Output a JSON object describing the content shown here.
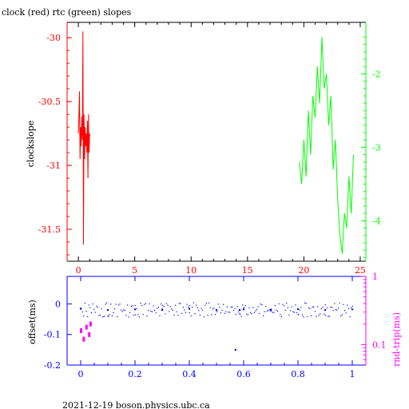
{
  "chart_data": [
    {
      "type": "line",
      "title": "clock (red) rtc (green) slopes",
      "xlabel": "",
      "ylabel": "clockslope",
      "xlim": [
        -1,
        25.5
      ],
      "ylim": [
        -31.75,
        -29.88
      ],
      "y2lim": [
        -4.55,
        -1.3
      ],
      "x_ticks": [
        "0",
        "5",
        "10",
        "15",
        "20",
        "25"
      ],
      "y_ticks": [
        "-30",
        "-30.5",
        "-31",
        "-31.5"
      ],
      "y2_ticks": [
        "-2",
        "-3",
        "-4"
      ],
      "colors": {
        "clock": "#ff0000",
        "rtc": "#00ff00",
        "axes": "#000000"
      },
      "series": [
        {
          "name": "clock",
          "axis": "left",
          "color": "#ff0000",
          "x": [
            0.0,
            0.05,
            0.1,
            0.15,
            0.2,
            0.25,
            0.3,
            0.35,
            0.4,
            0.45,
            0.5,
            0.55,
            0.6,
            0.65,
            0.7,
            0.75,
            0.8,
            0.85,
            0.9,
            0.95,
            1.0
          ],
          "values": [
            -30.75,
            -30.6,
            -30.42,
            -30.95,
            -30.7,
            -30.85,
            -30.62,
            -30.8,
            -29.95,
            -31.62,
            -30.6,
            -30.95,
            -30.7,
            -30.85,
            -30.75,
            -30.9,
            -30.65,
            -31.1,
            -30.6,
            -30.9,
            -30.75
          ]
        },
        {
          "name": "rtc",
          "axis": "right",
          "color": "#00ff00",
          "x": [
            19.6,
            19.8,
            20.0,
            20.2,
            20.4,
            20.6,
            20.8,
            21.0,
            21.2,
            21.4,
            21.6,
            21.8,
            22.0,
            22.2,
            22.4,
            22.6,
            22.8,
            23.0,
            23.2,
            23.4,
            23.6,
            23.8,
            24.0,
            24.2,
            24.4
          ],
          "values": [
            -3.2,
            -3.5,
            -2.9,
            -3.4,
            -2.5,
            -3.1,
            -2.3,
            -2.6,
            -1.9,
            -2.4,
            -1.5,
            -2.2,
            -2.0,
            -2.7,
            -2.3,
            -3.3,
            -2.9,
            -3.7,
            -4.2,
            -4.45,
            -3.9,
            -4.1,
            -3.4,
            -3.9,
            -3.1
          ]
        }
      ]
    },
    {
      "type": "scatter",
      "title": "",
      "xlabel": "",
      "ylabel": "offset(ms)",
      "y2label": "rnd-trip(ms)",
      "xlim": [
        -0.05,
        1.05
      ],
      "ylim": [
        -0.2,
        0.09
      ],
      "y2_scale": "log",
      "y2lim": [
        0.05,
        1.0
      ],
      "x_ticks": [
        "0",
        "0.2",
        "0.4",
        "0.6",
        "0.8",
        "1"
      ],
      "y_ticks": [
        "0",
        "-0.1",
        "-0.2"
      ],
      "y2_ticks": [
        "1",
        "0.1"
      ],
      "colors": {
        "offset": "#0000ff",
        "rnd_trip": "#ff00ff"
      },
      "series": [
        {
          "name": "offset",
          "axis": "left",
          "color": "#0000ff",
          "x": [
            0.0,
            0.1,
            0.2,
            0.3,
            0.4,
            0.5,
            0.57,
            0.585,
            0.6,
            0.7,
            0.8,
            0.9,
            1.0
          ],
          "values": [
            -0.015,
            -0.02,
            -0.018,
            -0.02,
            -0.016,
            -0.02,
            -0.15,
            -0.02,
            -0.018,
            -0.02,
            -0.017,
            -0.02,
            -0.018
          ]
        },
        {
          "name": "rnd-trip",
          "axis": "right",
          "color": "#ff00ff",
          "x": [
            0.0,
            0.01,
            0.02,
            0.03,
            0.035
          ],
          "values": [
            0.16,
            0.12,
            0.18,
            0.14,
            0.2
          ]
        }
      ]
    }
  ],
  "footer": "2021-12-19 boson.physics.ubc.ca"
}
